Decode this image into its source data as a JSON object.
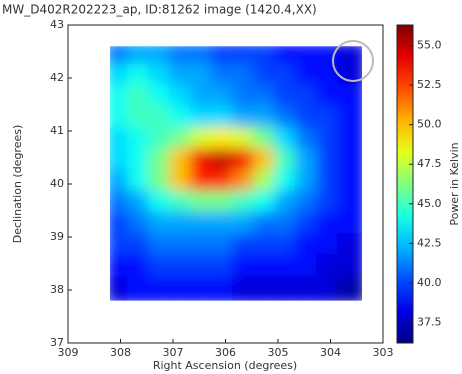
{
  "chart_data": {
    "type": "heatmap",
    "title": "MW_D402R202223_ap, ID:81262 image (1420.4,XX)",
    "x_label": "Right Ascension (degrees)",
    "y_label": "Declination (degrees)",
    "colorbar_label": "Power in Kelvin",
    "colormap": "jet",
    "xlim": [
      309,
      303
    ],
    "xticks": [
      309,
      308,
      307,
      306,
      305,
      304,
      303
    ],
    "ylim": [
      37,
      43
    ],
    "yticks": [
      37,
      38,
      39,
      40,
      41,
      42,
      43
    ],
    "clim": [
      36.2,
      56.3
    ],
    "cticks": [
      37.5,
      {
        "value": 40,
        "label": "40.0"
      },
      42.5,
      {
        "value": 45,
        "label": "45.0"
      },
      47.5,
      {
        "value": 50,
        "label": "50.0"
      },
      52.5,
      {
        "value": 55,
        "label": "55.0"
      }
    ],
    "x": [
      308.0,
      307.6,
      307.2,
      306.8,
      306.4,
      306.0,
      305.6,
      305.2,
      304.8,
      304.4,
      304.0,
      303.6
    ],
    "y": [
      42.4,
      42.0,
      41.6,
      41.2,
      40.8,
      40.4,
      40.0,
      39.6,
      39.2,
      38.8,
      38.4,
      38.0
    ],
    "z": [
      [
        41,
        42,
        42,
        41,
        41,
        40,
        40,
        40,
        39,
        39,
        39,
        38
      ],
      [
        43,
        44,
        43,
        42,
        42,
        41,
        41,
        40,
        40,
        39,
        39,
        38
      ],
      [
        44,
        45,
        44,
        43,
        42,
        42,
        41,
        41,
        40,
        40,
        39,
        39
      ],
      [
        44,
        45,
        45,
        44,
        43,
        43,
        42,
        42,
        41,
        40,
        40,
        39
      ],
      [
        43,
        44,
        45,
        46,
        48,
        49,
        48,
        46,
        43,
        41,
        40,
        39
      ],
      [
        43,
        44,
        46,
        50,
        54,
        55,
        54,
        50,
        45,
        42,
        40,
        39
      ],
      [
        42,
        44,
        46,
        50,
        53,
        53,
        51,
        47,
        44,
        42,
        40,
        39
      ],
      [
        41,
        42,
        44,
        45,
        46,
        46,
        45,
        44,
        42,
        41,
        40,
        39
      ],
      [
        40,
        41,
        42,
        42,
        42,
        42,
        42,
        41,
        41,
        40,
        39,
        39
      ],
      [
        40,
        40,
        41,
        41,
        41,
        41,
        40,
        40,
        40,
        39,
        39,
        38
      ],
      [
        39,
        39,
        40,
        40,
        40,
        40,
        39,
        39,
        39,
        39,
        38,
        38
      ],
      [
        38,
        39,
        39,
        39,
        39,
        39,
        38,
        38,
        38,
        38,
        38,
        37
      ]
    ]
  }
}
